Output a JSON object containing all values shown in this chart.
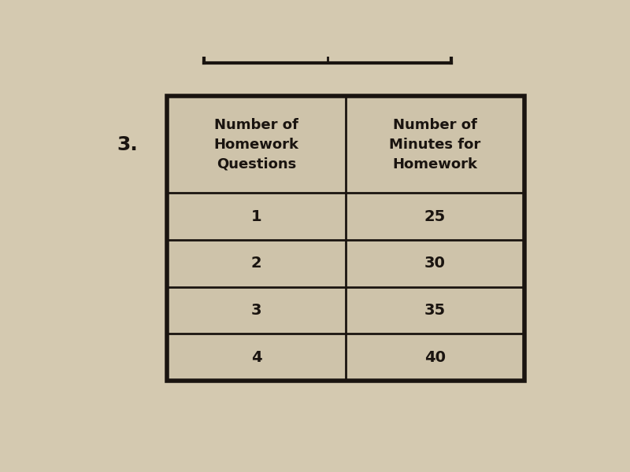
{
  "question_number": "3.",
  "col1_header": "Number of\nHomework\nQuestions",
  "col2_header": "Number of\nMinutes for\nHomework",
  "rows": [
    [
      "1",
      "25"
    ],
    [
      "2",
      "30"
    ],
    [
      "3",
      "35"
    ],
    [
      "4",
      "40"
    ]
  ],
  "background_color": "#d4c9b0",
  "cell_bg_color": "#cec3aa",
  "border_color": "#1a1410",
  "text_color": "#1a1410",
  "question_color": "#1a1410",
  "header_fontsize": 13,
  "cell_fontsize": 14,
  "question_fontsize": 18,
  "fig_width": 8.0,
  "fig_height": 6.0
}
